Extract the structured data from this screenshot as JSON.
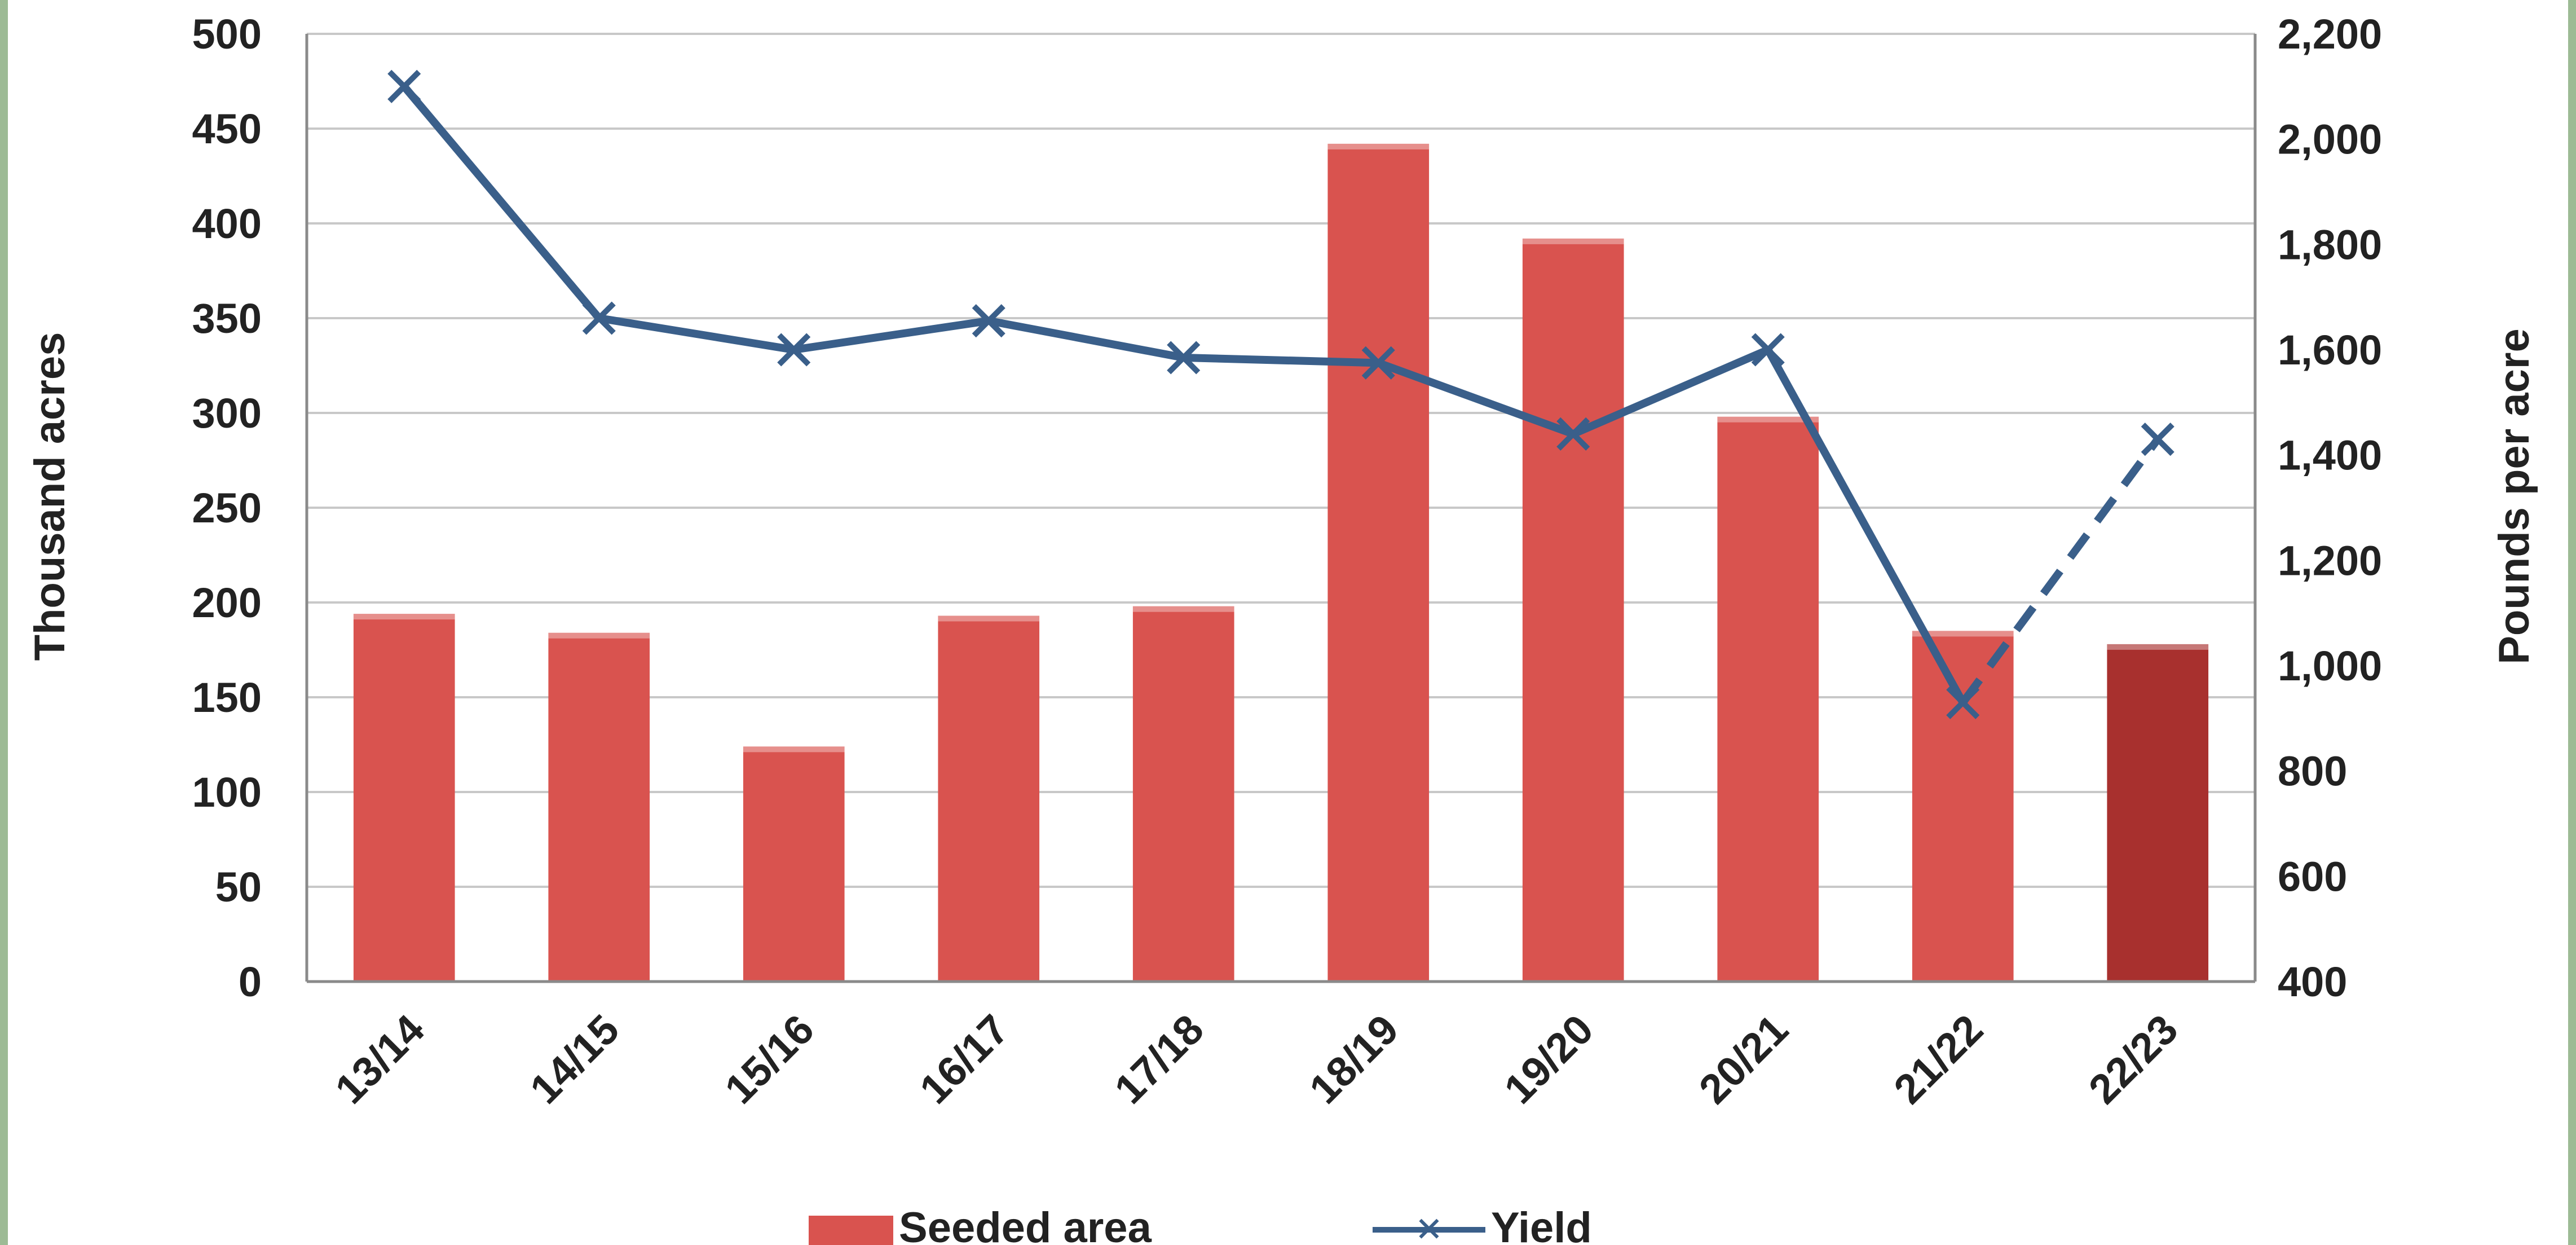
{
  "chart_data": {
    "type": "bar",
    "categories": [
      "13/14",
      "14/15",
      "15/16",
      "16/17",
      "17/18",
      "18/19",
      "19/20",
      "20/21",
      "21/22",
      "22/23"
    ],
    "series": [
      {
        "name": "Seeded area",
        "kind": "bar",
        "axis": "left",
        "values": [
          194,
          184,
          124,
          193,
          198,
          442,
          392,
          298,
          185,
          178
        ],
        "color": "#d9534f",
        "highlight_color": "#a8302e",
        "highlight_category": "22/23"
      },
      {
        "name": "Yield",
        "kind": "line",
        "axis": "right",
        "values": [
          2100,
          1660,
          1600,
          1655,
          1585,
          1575,
          1440,
          1600,
          930,
          1430
        ],
        "color": "#3a5f8a",
        "dashed_from_category": "21/22"
      }
    ],
    "ylabel_left": "Thousand acres",
    "ylabel_right": "Pounds per acre",
    "ylim_left": [
      0,
      500
    ],
    "yticks_left": [
      "0",
      "50",
      "100",
      "150",
      "200",
      "250",
      "300",
      "350",
      "400",
      "450",
      "500"
    ],
    "ylim_right": [
      400,
      2200
    ],
    "yticks_right": [
      "400",
      "600",
      "800",
      "1,000",
      "1,200",
      "1,400",
      "1,600",
      "1,800",
      "2,000",
      "2,200"
    ],
    "grid": true,
    "legend_position": "bottom"
  }
}
